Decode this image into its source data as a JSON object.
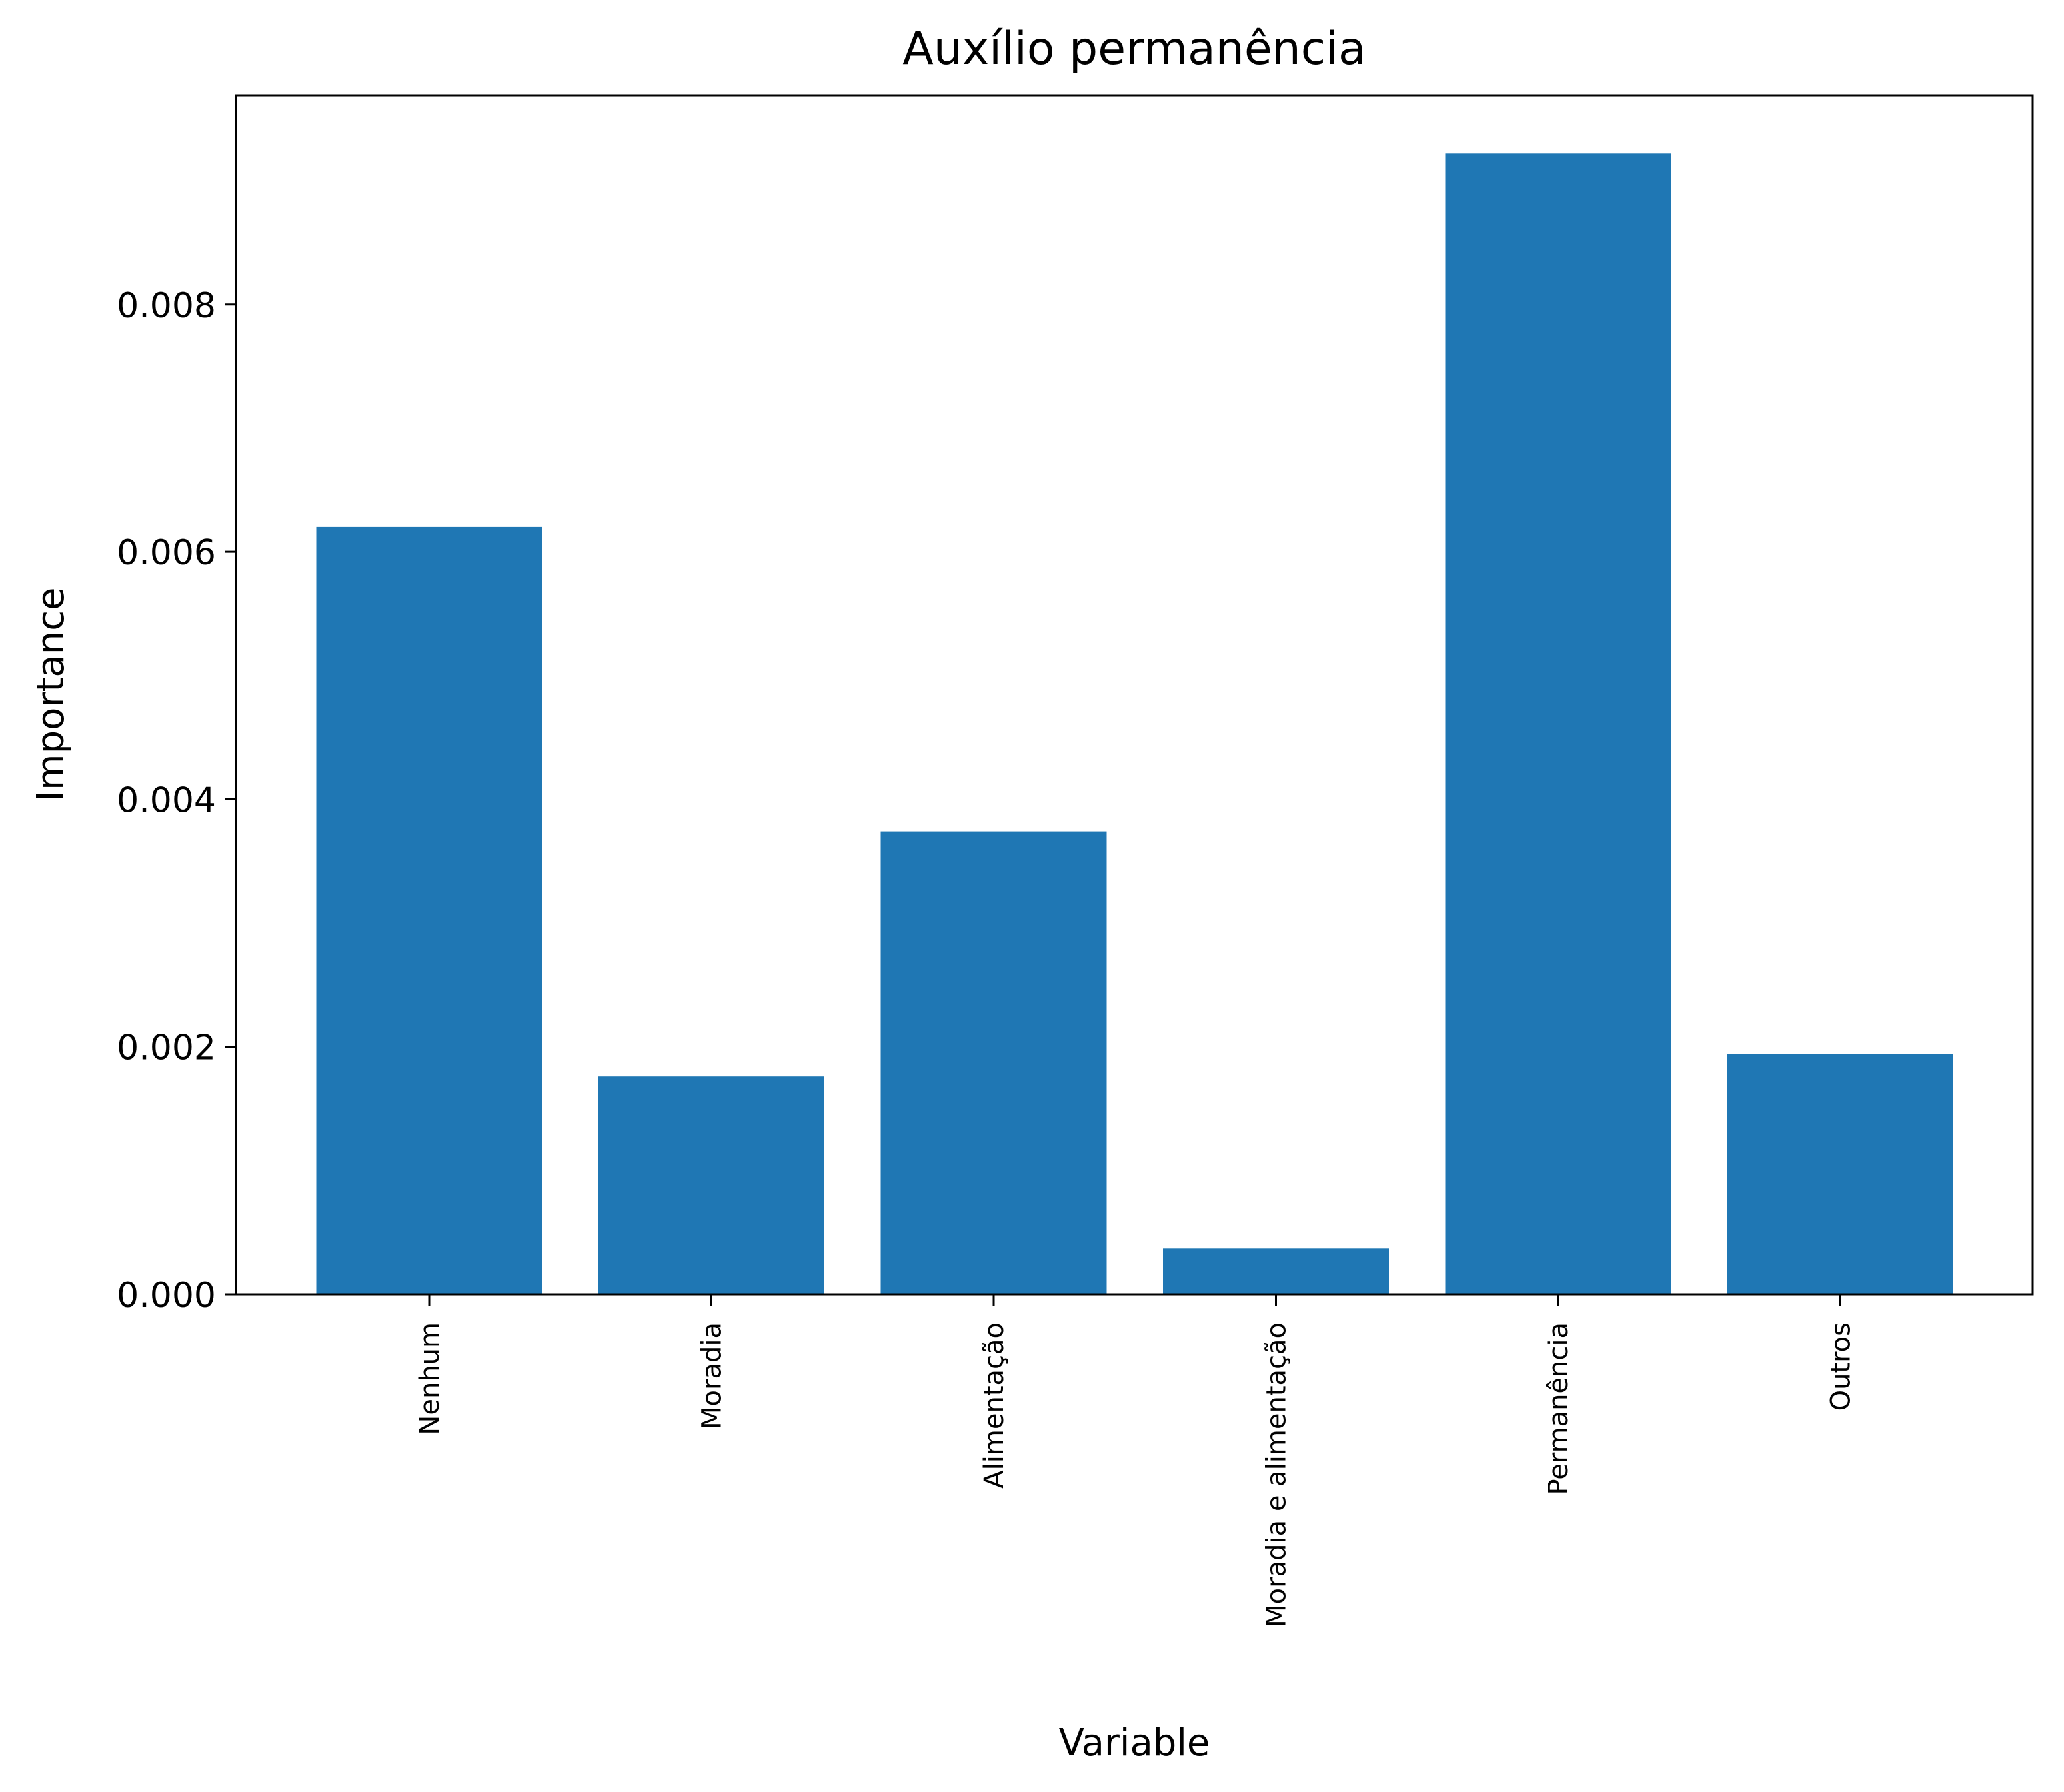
{
  "chart_data": {
    "type": "bar",
    "title": "Auxílio permanência",
    "xlabel": "Variable",
    "ylabel": "Importance",
    "categories": [
      "Nenhum",
      "Moradia",
      "Alimentação",
      "Moradia e alimentação",
      "Permanência",
      "Outros"
    ],
    "values": [
      0.0062,
      0.00176,
      0.00374,
      0.00037,
      0.00922,
      0.00194
    ],
    "ylim": [
      0,
      0.00969
    ],
    "yticks": [
      0.0,
      0.002,
      0.004,
      0.006,
      0.008
    ],
    "ytick_labels": [
      "0.000",
      "0.002",
      "0.004",
      "0.006",
      "0.008"
    ],
    "bar_color": "#1f77b4",
    "grid": false,
    "legend": "none"
  }
}
